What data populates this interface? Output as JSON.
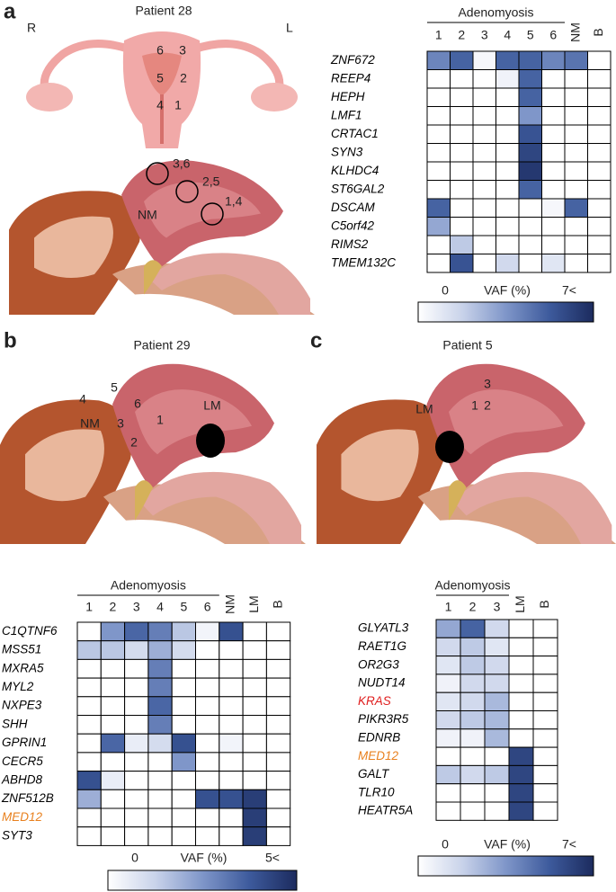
{
  "panels": [
    {
      "letter": "a",
      "title": "Patient 28",
      "labels": [
        "R",
        "L",
        "6",
        "3",
        "5",
        "2",
        "4",
        "1",
        "3,6",
        "2,5",
        "1,4",
        "NM"
      ]
    },
    {
      "letter": "b",
      "title": "Patient 29",
      "labels": [
        "4",
        "5",
        "6",
        "1",
        "LM",
        "NM",
        "3",
        "2"
      ]
    },
    {
      "letter": "c",
      "title": "Patient 5",
      "labels": [
        "3",
        "LM",
        "1",
        "2"
      ]
    }
  ],
  "chart_data": [
    {
      "type": "heatmap",
      "group_label": "Adenomyosis",
      "group_span": 6,
      "columns": [
        "1",
        "2",
        "3",
        "4",
        "5",
        "6",
        "NM",
        "B"
      ],
      "rows": [
        {
          "label": "ZNF672",
          "color": "#000000"
        },
        {
          "label": "REEP4",
          "color": "#000000"
        },
        {
          "label": "HEPH",
          "color": "#000000"
        },
        {
          "label": "LMF1",
          "color": "#000000"
        },
        {
          "label": "CRTAC1",
          "color": "#000000"
        },
        {
          "label": "SYN3",
          "color": "#000000"
        },
        {
          "label": "KLHDC4",
          "color": "#000000"
        },
        {
          "label": "ST6GAL2",
          "color": "#000000"
        },
        {
          "label": "DSCAM",
          "color": "#000000"
        },
        {
          "label": "C5orf42",
          "color": "#000000"
        },
        {
          "label": "RIMS2",
          "color": "#000000"
        },
        {
          "label": "TMEM132C",
          "color": "#000000"
        }
      ],
      "values": [
        [
          4,
          5,
          0.3,
          5,
          5,
          4,
          4.5,
          0
        ],
        [
          0,
          0,
          0,
          0.5,
          5,
          0,
          0,
          0
        ],
        [
          0,
          0,
          0,
          0,
          5,
          0,
          0,
          0
        ],
        [
          0,
          0,
          0,
          0,
          3.5,
          0,
          0,
          0
        ],
        [
          0,
          0,
          0,
          0,
          5.5,
          0,
          0,
          0
        ],
        [
          0,
          0,
          0,
          0,
          6,
          0,
          0,
          0
        ],
        [
          0,
          0,
          0,
          0,
          6.5,
          0,
          0,
          0
        ],
        [
          0,
          0,
          0,
          0,
          5,
          0,
          0,
          0
        ],
        [
          5,
          0,
          0,
          0,
          0,
          0.3,
          5,
          0
        ],
        [
          3,
          0,
          0,
          0,
          0,
          0,
          0,
          0
        ],
        [
          0,
          2,
          0,
          0,
          0,
          0,
          0,
          0
        ],
        [
          0,
          5.5,
          0,
          1.5,
          0,
          1,
          0,
          0
        ]
      ],
      "colorbar": {
        "label": "VAF (%)",
        "clim": [
          0,
          7
        ],
        "ticks": [
          0,
          {
            "value": 7,
            "label": "7<"
          }
        ],
        "colormap": [
          "#ffffff",
          "#c9d3ea",
          "#7f96c9",
          "#3d5a9c",
          "#1c2b5e"
        ]
      }
    },
    {
      "type": "heatmap",
      "group_label": "Adenomyosis",
      "group_span": 6,
      "columns": [
        "1",
        "2",
        "3",
        "4",
        "5",
        "6",
        "NM",
        "LM",
        "B"
      ],
      "rows": [
        {
          "label": "C1QTNF6",
          "color": "#000000"
        },
        {
          "label": "MSS51",
          "color": "#000000"
        },
        {
          "label": "MXRA5",
          "color": "#000000"
        },
        {
          "label": "MYL2",
          "color": "#000000"
        },
        {
          "label": "NXPE3",
          "color": "#000000"
        },
        {
          "label": "SHH",
          "color": "#000000"
        },
        {
          "label": "GPRIN1",
          "color": "#000000"
        },
        {
          "label": "CECR5",
          "color": "#000000"
        },
        {
          "label": "ABHD8",
          "color": "#000000"
        },
        {
          "label": "ZNF512B",
          "color": "#000000"
        },
        {
          "label": "MED12",
          "color": "#e8801e"
        },
        {
          "label": "SYT3",
          "color": "#000000"
        }
      ],
      "values": [
        [
          0,
          2.5,
          3.5,
          3,
          1.5,
          0.3,
          4,
          0,
          0
        ],
        [
          1.5,
          1.5,
          1,
          2,
          1,
          0,
          0,
          0,
          0
        ],
        [
          0,
          0,
          0,
          3,
          0,
          0,
          0,
          0,
          0
        ],
        [
          0,
          0,
          0,
          3,
          0,
          0,
          0,
          0,
          0
        ],
        [
          0,
          0,
          0,
          3.5,
          0,
          0,
          0,
          0,
          0
        ],
        [
          0,
          0,
          0,
          3,
          0,
          0,
          0,
          0,
          0
        ],
        [
          0,
          3.5,
          0.5,
          1,
          4,
          0,
          0.3,
          0,
          0
        ],
        [
          0,
          0,
          0,
          0,
          2.5,
          0,
          0,
          0,
          0
        ],
        [
          4,
          0.5,
          0,
          0,
          0,
          0,
          0,
          0,
          0
        ],
        [
          2,
          0,
          0,
          0,
          0,
          4,
          4,
          4.5,
          0
        ],
        [
          0,
          0,
          0,
          0,
          0,
          0,
          0,
          4.5,
          0
        ],
        [
          0,
          0,
          0,
          0,
          0,
          0,
          0,
          4.5,
          0
        ]
      ],
      "colorbar": {
        "label": "VAF (%)",
        "clim": [
          0,
          5
        ],
        "ticks": [
          0,
          {
            "value": 5,
            "label": "5<"
          }
        ],
        "colormap": [
          "#ffffff",
          "#c9d3ea",
          "#7f96c9",
          "#3d5a9c",
          "#1c2b5e"
        ]
      }
    },
    {
      "type": "heatmap",
      "group_label": "Adenomyosis",
      "group_span": 3,
      "columns": [
        "1",
        "2",
        "3",
        "LM",
        "B"
      ],
      "rows": [
        {
          "label": "GLYATL3",
          "color": "#000000"
        },
        {
          "label": "RAET1G",
          "color": "#000000"
        },
        {
          "label": "OR2G3",
          "color": "#000000"
        },
        {
          "label": "NUDT14",
          "color": "#000000"
        },
        {
          "label": "KRAS",
          "color": "#e02020"
        },
        {
          "label": "PIKR3R5",
          "color": "#000000"
        },
        {
          "label": "EDNRB",
          "color": "#000000"
        },
        {
          "label": "MED12",
          "color": "#e8801e"
        },
        {
          "label": "GALT",
          "color": "#000000"
        },
        {
          "label": "TLR10",
          "color": "#000000"
        },
        {
          "label": "HEATR5A",
          "color": "#000000"
        }
      ],
      "values": [
        [
          3,
          5,
          1.5,
          0,
          0
        ],
        [
          1.5,
          2,
          1,
          0,
          0
        ],
        [
          1,
          2,
          1.5,
          0,
          0
        ],
        [
          0.5,
          1.5,
          1.5,
          0,
          0
        ],
        [
          1,
          1.5,
          2.5,
          0,
          0
        ],
        [
          1.5,
          2,
          2.5,
          0,
          0
        ],
        [
          0.5,
          0.5,
          2.5,
          0,
          0
        ],
        [
          0,
          0,
          0,
          6,
          0
        ],
        [
          2,
          1.5,
          2,
          6,
          0
        ],
        [
          0,
          0,
          0,
          6,
          0
        ],
        [
          0,
          0,
          0,
          6,
          0
        ]
      ],
      "colorbar": {
        "label": "VAF (%)",
        "clim": [
          0,
          7
        ],
        "ticks": [
          0,
          {
            "value": 7,
            "label": "7<"
          }
        ],
        "colormap": [
          "#ffffff",
          "#c9d3ea",
          "#7f96c9",
          "#3d5a9c",
          "#1c2b5e"
        ]
      }
    }
  ]
}
